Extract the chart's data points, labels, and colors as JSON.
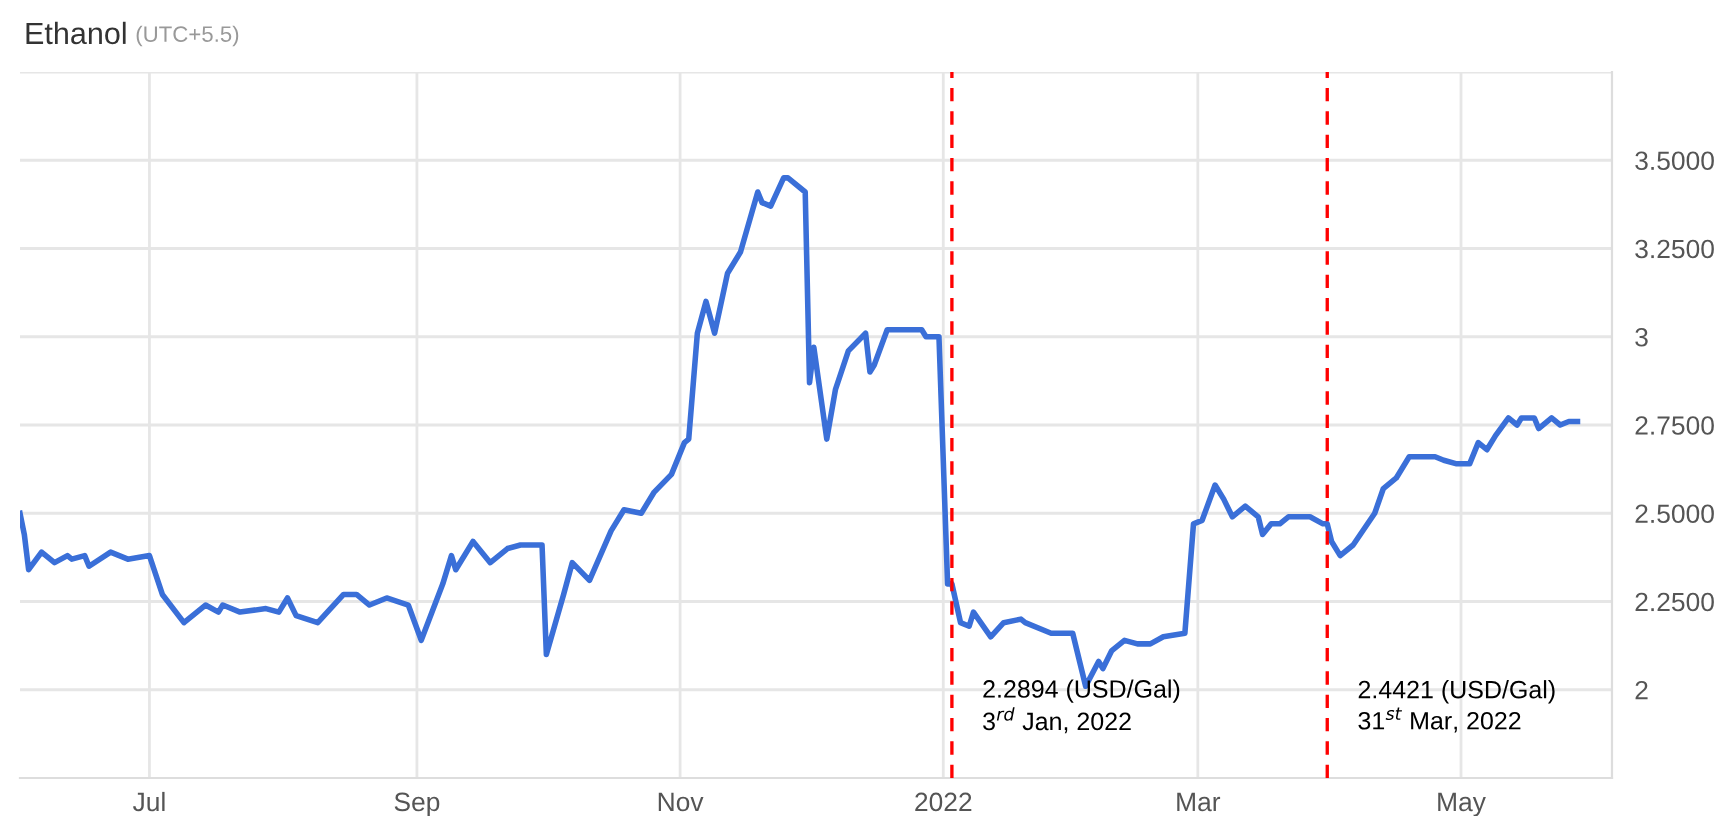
{
  "chart_data": {
    "type": "line",
    "title": "Ethanol",
    "subtitle": "(UTC+5.5)",
    "x": [
      "2021-06-01",
      "2021-06-02",
      "2021-06-03",
      "2021-06-06",
      "2021-06-09",
      "2021-06-12",
      "2021-06-13",
      "2021-06-16",
      "2021-06-17",
      "2021-06-22",
      "2021-06-26",
      "2021-07-01",
      "2021-07-04",
      "2021-07-09",
      "2021-07-14",
      "2021-07-17",
      "2021-07-18",
      "2021-07-22",
      "2021-07-28",
      "2021-07-31",
      "2021-08-02",
      "2021-08-04",
      "2021-08-09",
      "2021-08-15",
      "2021-08-18",
      "2021-08-21",
      "2021-08-25",
      "2021-08-30",
      "2021-09-02",
      "2021-09-07",
      "2021-09-09",
      "2021-09-10",
      "2021-09-14",
      "2021-09-18",
      "2021-09-22",
      "2021-09-25",
      "2021-09-30",
      "2021-10-01",
      "2021-10-05",
      "2021-10-07",
      "2021-10-11",
      "2021-10-16",
      "2021-10-19",
      "2021-10-23",
      "2021-10-26",
      "2021-10-30",
      "2021-11-02",
      "2021-11-03",
      "2021-11-05",
      "2021-11-07",
      "2021-11-09",
      "2021-11-12",
      "2021-11-15",
      "2021-11-19",
      "2021-11-20",
      "2021-11-22",
      "2021-11-25",
      "2021-11-26",
      "2021-11-30",
      "2021-12-01",
      "2021-12-02",
      "2021-12-05",
      "2021-12-07",
      "2021-12-10",
      "2021-12-14",
      "2021-12-15",
      "2021-12-16",
      "2021-12-19",
      "2021-12-27",
      "2021-12-28",
      "2021-12-31",
      "2022-01-02",
      "2022-01-03",
      "2022-01-05",
      "2022-01-07",
      "2022-01-08",
      "2022-01-12",
      "2022-01-15",
      "2022-01-19",
      "2022-01-20",
      "2022-01-26",
      "2022-01-31",
      "2022-02-03",
      "2022-02-06",
      "2022-02-07",
      "2022-02-09",
      "2022-02-12",
      "2022-02-15",
      "2022-02-18",
      "2022-02-21",
      "2022-02-26",
      "2022-02-28",
      "2022-03-02",
      "2022-03-05",
      "2022-03-07",
      "2022-03-09",
      "2022-03-12",
      "2022-03-15",
      "2022-03-16",
      "2022-03-18",
      "2022-03-20",
      "2022-03-22",
      "2022-03-27",
      "2022-03-30",
      "2022-03-31",
      "2022-04-01",
      "2022-04-03",
      "2022-04-06",
      "2022-04-11",
      "2022-04-13",
      "2022-04-16",
      "2022-04-19",
      "2022-04-25",
      "2022-04-27",
      "2022-04-30",
      "2022-05-03",
      "2022-05-05",
      "2022-05-07",
      "2022-05-09",
      "2022-05-12",
      "2022-05-14",
      "2022-05-15",
      "2022-05-18",
      "2022-05-19",
      "2022-05-22",
      "2022-05-24",
      "2022-05-26",
      "2022-05-28"
    ],
    "series": [
      {
        "color": "#3a6fd8",
        "values": [
          2.5,
          2.44,
          2.34,
          2.39,
          2.36,
          2.38,
          2.37,
          2.38,
          2.35,
          2.39,
          2.37,
          2.38,
          2.27,
          2.19,
          2.24,
          2.22,
          2.24,
          2.22,
          2.23,
          2.22,
          2.26,
          2.21,
          2.19,
          2.27,
          2.27,
          2.24,
          2.26,
          2.24,
          2.14,
          2.3,
          2.38,
          2.34,
          2.42,
          2.36,
          2.4,
          2.41,
          2.41,
          2.1,
          2.27,
          2.36,
          2.31,
          2.45,
          2.51,
          2.5,
          2.56,
          2.61,
          2.7,
          2.71,
          3.01,
          3.1,
          3.01,
          3.18,
          3.24,
          3.41,
          3.38,
          3.37,
          3.45,
          3.45,
          3.41,
          2.87,
          2.97,
          2.71,
          2.85,
          2.96,
          3.01,
          2.9,
          2.92,
          3.02,
          3.02,
          3.0,
          3.0,
          2.3,
          2.3,
          2.19,
          2.18,
          2.22,
          2.15,
          2.19,
          2.2,
          2.19,
          2.16,
          2.16,
          2.01,
          2.08,
          2.06,
          2.11,
          2.14,
          2.13,
          2.13,
          2.15,
          2.16,
          2.47,
          2.48,
          2.58,
          2.54,
          2.49,
          2.52,
          2.49,
          2.44,
          2.47,
          2.47,
          2.49,
          2.49,
          2.47,
          2.47,
          2.42,
          2.38,
          2.41,
          2.5,
          2.57,
          2.6,
          2.66,
          2.66,
          2.65,
          2.64,
          2.64,
          2.7,
          2.68,
          2.72,
          2.77,
          2.75,
          2.77,
          2.77,
          2.74,
          2.77,
          2.75,
          2.76,
          2.76
        ]
      }
    ],
    "xlim": [
      "2021-06-01",
      "2022-06-05"
    ],
    "xticks": [
      {
        "value": "2021-07-01",
        "label": "Jul"
      },
      {
        "value": "2021-09-01",
        "label": "Sep"
      },
      {
        "value": "2021-11-01",
        "label": "Nov"
      },
      {
        "value": "2022-01-01",
        "label": "2022"
      },
      {
        "value": "2022-03-01",
        "label": "Mar"
      },
      {
        "value": "2022-05-01",
        "label": "May"
      }
    ],
    "ylim": [
      1.75,
      3.75
    ],
    "yticks": [
      2,
      {
        "value": 2.25,
        "label": "2.2500"
      },
      {
        "value": 2.5,
        "label": "2.5000"
      },
      {
        "value": 2.75,
        "label": "2.7500"
      },
      3,
      {
        "value": 3.25,
        "label": "3.2500"
      },
      {
        "value": 3.5,
        "label": "3.5000"
      },
      {
        "value": 3.75,
        "label": null
      }
    ],
    "ref_lines": [
      {
        "axis": "x",
        "value": "2022-01-03",
        "label": "2.2894 (USD/Gal)\n3$^{rd}$ Jan, 2022",
        "color": "#ff0000",
        "line_style": "dashed"
      },
      {
        "axis": "x",
        "value": "2022-03-31",
        "label": "2.4421 (USD/Gal)\n31$^{st}$ Mar, 2022",
        "color": "#ff0000",
        "line_style": "dashed"
      }
    ],
    "grid": true,
    "marker": "none",
    "line_style": "solid"
  }
}
